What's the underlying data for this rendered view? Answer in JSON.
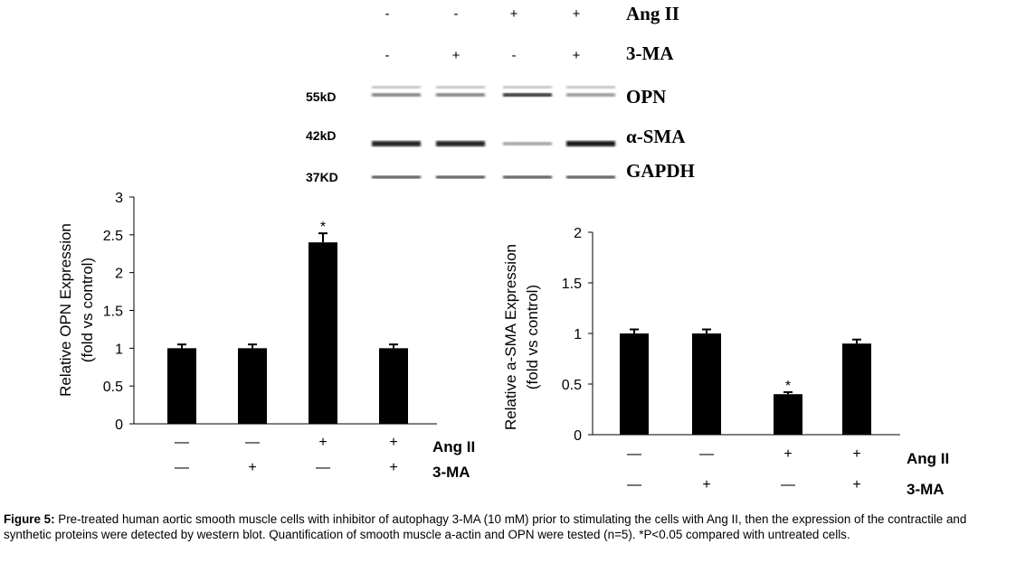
{
  "blot": {
    "ang_label": "Ang II",
    "ma_label": "3-MA",
    "ang_signs": [
      "-",
      "-",
      "+",
      "+"
    ],
    "ma_signs": [
      "-",
      "+",
      "-",
      "+"
    ],
    "bands": [
      {
        "name": "OPN",
        "marker": "55kD",
        "intensity": [
          0.55,
          0.55,
          0.9,
          0.45
        ]
      },
      {
        "name": "α-SMA",
        "marker": "42kD",
        "intensity": [
          0.95,
          0.95,
          0.4,
          1.0
        ]
      },
      {
        "name": "GAPDH",
        "marker": "37KD",
        "intensity": [
          0.85,
          0.85,
          0.85,
          0.85
        ]
      }
    ]
  },
  "chart_data": [
    {
      "type": "bar",
      "ylabel": "Relative OPN Expression",
      "ylabel2": "(fold vs control)",
      "ylim": [
        0,
        3
      ],
      "yticks": [
        "0",
        "0.5",
        "1",
        "1.5",
        "2",
        "2.5",
        "3"
      ],
      "categories": [
        "control",
        "3-MA",
        "Ang II",
        "Ang II + 3-MA"
      ],
      "values": [
        1.0,
        1.0,
        2.4,
        1.0
      ],
      "errors": [
        0.05,
        0.05,
        0.12,
        0.05
      ],
      "significance": [
        "",
        "",
        "*",
        ""
      ],
      "row1_label": "Ang II",
      "row2_label": "3-MA",
      "row1": [
        "—",
        "—",
        "+",
        "+"
      ],
      "row2": [
        "—",
        "+",
        "—",
        "+"
      ]
    },
    {
      "type": "bar",
      "ylabel": "Relative a-SMA Expression",
      "ylabel2": "(fold vs control)",
      "ylim": [
        0,
        2
      ],
      "yticks": [
        "0",
        "0.5",
        "1",
        "1.5",
        "2"
      ],
      "categories": [
        "control",
        "3-MA",
        "Ang II",
        "Ang II + 3-MA"
      ],
      "values": [
        1.0,
        1.0,
        0.4,
        0.9
      ],
      "errors": [
        0.04,
        0.04,
        0.02,
        0.04
      ],
      "significance": [
        "",
        "",
        "*",
        ""
      ],
      "row1_label": "Ang II",
      "row2_label": "3-MA",
      "row1": [
        "—",
        "—",
        "+",
        "+"
      ],
      "row2": [
        "—",
        "+",
        "—",
        "+"
      ]
    }
  ],
  "caption": {
    "label": "Figure 5:",
    "text": " Pre-treated human aortic smooth muscle cells with inhibitor of autophagy 3-MA (10 mM) prior to stimulating the cells with Ang II, then the expression of the contractile and synthetic proteins were detected by western blot. Quantification of smooth muscle a-actin and OPN were tested (n=5). *P<0.05 compared with untreated cells."
  }
}
